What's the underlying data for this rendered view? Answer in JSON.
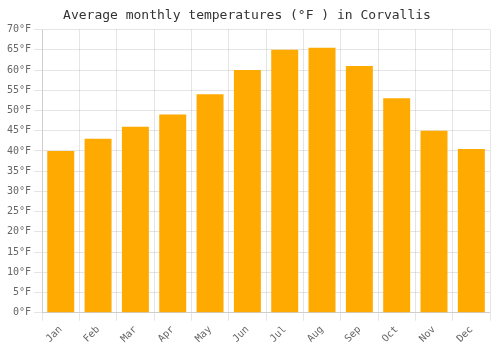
{
  "chart_data": {
    "type": "bar",
    "title": "Average monthly temperatures (°F ) in Corvallis",
    "categories": [
      "Jan",
      "Feb",
      "Mar",
      "Apr",
      "May",
      "Jun",
      "Jul",
      "Aug",
      "Sep",
      "Oct",
      "Nov",
      "Dec"
    ],
    "values": [
      40,
      43,
      46,
      49,
      54,
      60,
      65,
      65.5,
      61,
      53,
      45,
      40.5
    ],
    "color": "#FFAA00",
    "ylim": [
      0,
      70
    ],
    "yticks": [
      {
        "value": 0,
        "label": "0°F"
      },
      {
        "value": 5,
        "label": "5°F"
      },
      {
        "value": 10,
        "label": "10°F"
      },
      {
        "value": 15,
        "label": "15°F"
      },
      {
        "value": 20,
        "label": "20°F"
      },
      {
        "value": 25,
        "label": "25°F"
      },
      {
        "value": 30,
        "label": "30°F"
      },
      {
        "value": 35,
        "label": "35°F"
      },
      {
        "value": 40,
        "label": "40°F"
      },
      {
        "value": 45,
        "label": "45°F"
      },
      {
        "value": 50,
        "label": "50°F"
      },
      {
        "value": 55,
        "label": "55°F"
      },
      {
        "value": 60,
        "label": "60°F"
      },
      {
        "value": 65,
        "label": "65°F"
      },
      {
        "value": 70,
        "label": "70°F"
      }
    ],
    "grid": true
  }
}
